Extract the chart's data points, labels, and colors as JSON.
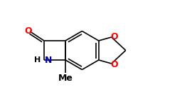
{
  "bg_color": "#ffffff",
  "bond_color": "#000000",
  "atom_colors": {
    "O": "#ff0000",
    "N": "#0000aa",
    "H": "#000000",
    "C": "#000000"
  },
  "figsize": [
    2.63,
    1.47
  ],
  "dpi": 100,
  "lw": 1.2,
  "fs": 9
}
